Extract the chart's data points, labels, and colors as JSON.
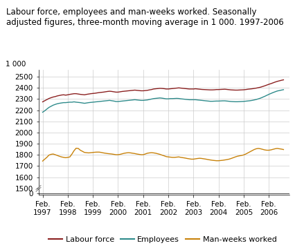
{
  "title": "Labour force, employees and man-weeks worked. Seasonally\nadjusted figures, three-month moving average in 1 000. 1997-2006",
  "yticks_main": [
    1500,
    1600,
    1700,
    1800,
    1900,
    2000,
    2100,
    2200,
    2300,
    2400,
    2500
  ],
  "ytick_labels_main": [
    "1500",
    "1600",
    "1700",
    "1800",
    "1900",
    "2000",
    "2100",
    "2200",
    "2300",
    "2400",
    "2500"
  ],
  "ytick_zero": [
    0
  ],
  "ytick_zero_label": [
    "0"
  ],
  "ylim_main_bottom": 1500,
  "ylim_main_top": 2560,
  "ylim_zero_bottom": -10,
  "ylim_zero_top": 30,
  "xtick_positions": [
    0,
    12,
    24,
    36,
    48,
    60,
    72,
    84,
    96,
    108
  ],
  "xtick_labels": [
    "Feb.\n1997",
    "Feb.\n1998",
    "Feb.\n1999",
    "Feb.\n2000",
    "Feb.\n2001",
    "Feb.\n2002",
    "Feb.\n2003",
    "Feb.\n2004",
    "Feb.\n2005",
    "Feb.\n2006"
  ],
  "series": {
    "labour_force": {
      "color": "#8B2020",
      "label": "Labour force",
      "data": [
        2275,
        2285,
        2295,
        2305,
        2312,
        2318,
        2322,
        2328,
        2332,
        2336,
        2338,
        2335,
        2338,
        2342,
        2345,
        2348,
        2348,
        2345,
        2342,
        2340,
        2338,
        2342,
        2345,
        2348,
        2350,
        2352,
        2355,
        2358,
        2360,
        2362,
        2365,
        2368,
        2370,
        2368,
        2365,
        2362,
        2362,
        2365,
        2368,
        2370,
        2372,
        2374,
        2376,
        2378,
        2380,
        2378,
        2376,
        2374,
        2374,
        2376,
        2378,
        2382,
        2385,
        2390,
        2392,
        2394,
        2396,
        2395,
        2393,
        2390,
        2390,
        2392,
        2394,
        2396,
        2398,
        2400,
        2398,
        2396,
        2394,
        2392,
        2390,
        2390,
        2390,
        2392,
        2390,
        2388,
        2386,
        2385,
        2384,
        2383,
        2382,
        2382,
        2383,
        2385,
        2385,
        2386,
        2387,
        2388,
        2386,
        2384,
        2382,
        2381,
        2380,
        2380,
        2381,
        2382,
        2383,
        2385,
        2388,
        2390,
        2392,
        2395,
        2398,
        2402,
        2406,
        2412,
        2418,
        2425,
        2432,
        2438,
        2445,
        2452,
        2458,
        2463,
        2468,
        2472
      ]
    },
    "employees": {
      "color": "#2E8B8B",
      "label": "Employees",
      "data": [
        2182,
        2195,
        2210,
        2225,
        2235,
        2245,
        2252,
        2258,
        2262,
        2265,
        2268,
        2268,
        2270,
        2272,
        2272,
        2275,
        2272,
        2270,
        2268,
        2265,
        2262,
        2265,
        2268,
        2270,
        2272,
        2274,
        2276,
        2278,
        2280,
        2282,
        2284,
        2286,
        2288,
        2285,
        2282,
        2278,
        2278,
        2280,
        2282,
        2284,
        2286,
        2288,
        2290,
        2292,
        2294,
        2292,
        2290,
        2288,
        2288,
        2290,
        2292,
        2296,
        2300,
        2304,
        2306,
        2308,
        2310,
        2308,
        2305,
        2302,
        2302,
        2304,
        2304,
        2305,
        2306,
        2305,
        2302,
        2300,
        2298,
        2296,
        2294,
        2294,
        2294,
        2294,
        2292,
        2290,
        2288,
        2286,
        2284,
        2282,
        2280,
        2280,
        2281,
        2282,
        2282,
        2283,
        2284,
        2284,
        2282,
        2280,
        2278,
        2277,
        2276,
        2276,
        2277,
        2278,
        2279,
        2281,
        2283,
        2285,
        2288,
        2292,
        2296,
        2302,
        2308,
        2316,
        2324,
        2333,
        2342,
        2350,
        2358,
        2365,
        2372,
        2376,
        2380,
        2384
      ]
    },
    "man_weeks": {
      "color": "#C8820A",
      "label": "Man-weeks worked",
      "data": [
        1745,
        1762,
        1778,
        1798,
        1805,
        1808,
        1802,
        1795,
        1788,
        1782,
        1778,
        1775,
        1778,
        1782,
        1808,
        1838,
        1860,
        1858,
        1842,
        1832,
        1822,
        1820,
        1818,
        1820,
        1822,
        1824,
        1825,
        1825,
        1822,
        1818,
        1815,
        1812,
        1810,
        1808,
        1805,
        1802,
        1802,
        1805,
        1810,
        1815,
        1818,
        1820,
        1818,
        1815,
        1812,
        1808,
        1805,
        1802,
        1802,
        1808,
        1815,
        1818,
        1820,
        1818,
        1815,
        1810,
        1805,
        1798,
        1792,
        1785,
        1782,
        1780,
        1778,
        1778,
        1780,
        1782,
        1778,
        1775,
        1772,
        1768,
        1765,
        1762,
        1762,
        1765,
        1768,
        1770,
        1768,
        1765,
        1762,
        1758,
        1755,
        1752,
        1750,
        1748,
        1748,
        1750,
        1752,
        1755,
        1758,
        1762,
        1768,
        1775,
        1782,
        1788,
        1792,
        1795,
        1800,
        1808,
        1818,
        1828,
        1838,
        1848,
        1855,
        1858,
        1855,
        1850,
        1845,
        1842,
        1842,
        1845,
        1850,
        1855,
        1858,
        1855,
        1852,
        1848
      ]
    }
  },
  "background_color": "#FFFFFF",
  "grid_color": "#CCCCCC",
  "title_fontsize": 8.5,
  "axis_fontsize": 7.5,
  "legend_fontsize": 8
}
